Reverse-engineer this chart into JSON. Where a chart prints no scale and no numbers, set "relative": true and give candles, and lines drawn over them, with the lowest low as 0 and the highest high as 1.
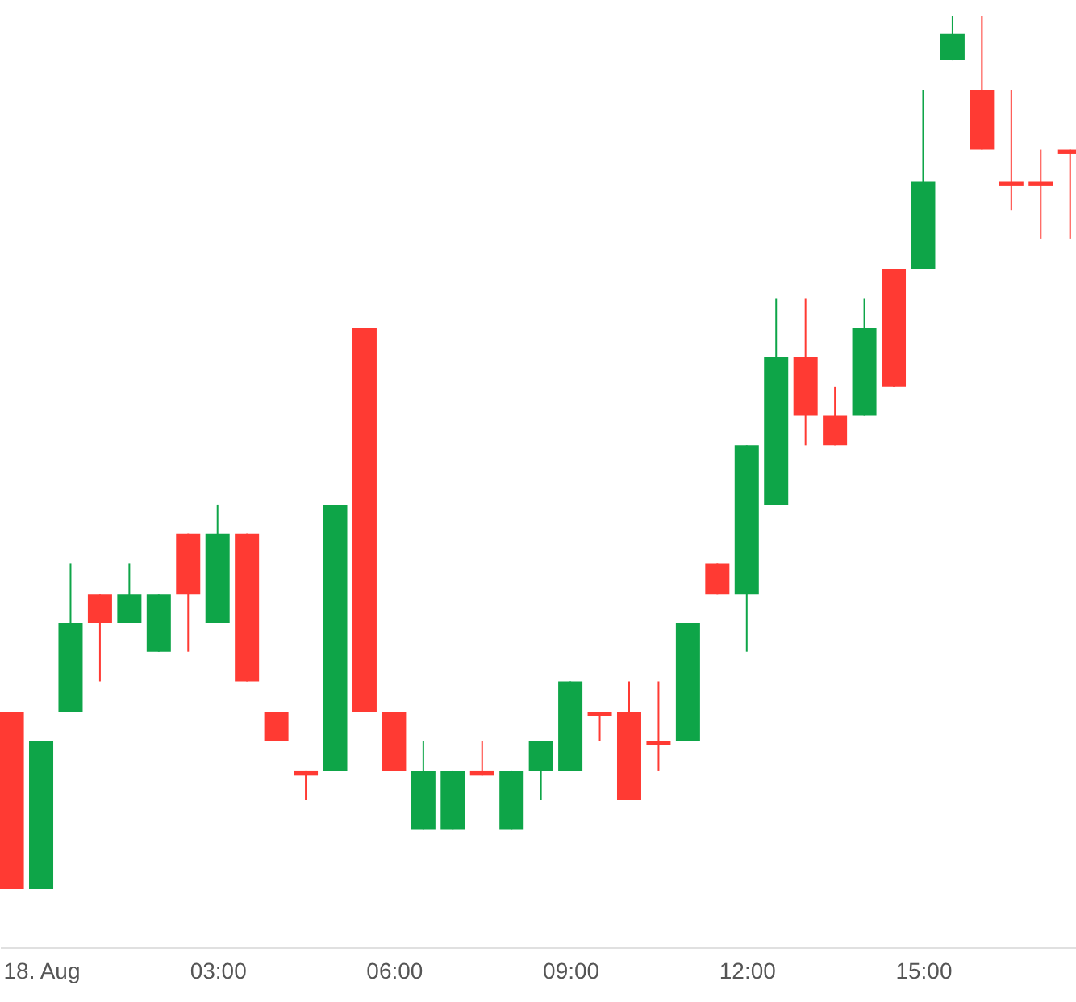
{
  "chart_data": {
    "type": "candlestick",
    "relative": true,
    "x": [
      -0.5,
      0,
      0.5,
      1,
      1.5,
      2,
      2.5,
      3,
      3.5,
      4,
      4.5,
      5,
      5.5,
      6,
      6.5,
      7,
      7.5,
      8,
      8.5,
      9,
      9.5,
      10,
      10.5,
      11,
      11.5,
      12,
      12.5,
      13,
      13.5,
      14,
      14.5,
      15,
      15.5,
      16,
      16.5,
      17,
      17.5
    ],
    "ohlc": [
      [
        0.203,
        0.203,
        0,
        0
      ],
      [
        0,
        0.17,
        0,
        0.17
      ],
      [
        0.203,
        0.373,
        0.203,
        0.305
      ],
      [
        0.338,
        0.338,
        0.238,
        0.305
      ],
      [
        0.305,
        0.373,
        0.305,
        0.338
      ],
      [
        0.272,
        0.338,
        0.272,
        0.338
      ],
      [
        0.407,
        0.407,
        0.272,
        0.338
      ],
      [
        0.305,
        0.44,
        0.305,
        0.407
      ],
      [
        0.407,
        0.407,
        0.238,
        0.238
      ],
      [
        0.203,
        0.203,
        0.17,
        0.17
      ],
      [
        0.135,
        0.135,
        0.102,
        0.13
      ],
      [
        0.135,
        0.44,
        0.135,
        0.44
      ],
      [
        0.643,
        0.643,
        0.203,
        0.203
      ],
      [
        0.203,
        0.203,
        0.135,
        0.135
      ],
      [
        0.068,
        0.17,
        0.068,
        0.135
      ],
      [
        0.068,
        0.135,
        0.068,
        0.135
      ],
      [
        0.135,
        0.17,
        0.13,
        0.13
      ],
      [
        0.068,
        0.135,
        0.068,
        0.135
      ],
      [
        0.135,
        0.17,
        0.102,
        0.17
      ],
      [
        0.135,
        0.238,
        0.135,
        0.238
      ],
      [
        0.203,
        0.203,
        0.17,
        0.198
      ],
      [
        0.203,
        0.238,
        0.102,
        0.102
      ],
      [
        0.17,
        0.238,
        0.135,
        0.165
      ],
      [
        0.17,
        0.305,
        0.17,
        0.305
      ],
      [
        0.373,
        0.373,
        0.338,
        0.338
      ],
      [
        0.338,
        0.508,
        0.272,
        0.508
      ],
      [
        0.44,
        0.677,
        0.44,
        0.61
      ],
      [
        0.61,
        0.677,
        0.508,
        0.542
      ],
      [
        0.542,
        0.575,
        0.508,
        0.508
      ],
      [
        0.542,
        0.677,
        0.542,
        0.643
      ],
      [
        0.71,
        0.71,
        0.575,
        0.575
      ],
      [
        0.71,
        0.915,
        0.71,
        0.811
      ],
      [
        0.95,
        1,
        0.95,
        0.98
      ],
      [
        0.915,
        1,
        0.847,
        0.847
      ],
      [
        0.811,
        0.915,
        0.778,
        0.806
      ],
      [
        0.811,
        0.847,
        0.745,
        0.806
      ],
      [
        0.847,
        0.847,
        0.745,
        0.842
      ]
    ],
    "colors": [
      "#ff3a33",
      "#0ea548",
      "#0ea548",
      "#ff3a33",
      "#0ea548",
      "#0ea548",
      "#ff3a33",
      "#0ea548",
      "#ff3a33",
      "#ff3a33",
      "#ff3a33",
      "#0ea548",
      "#ff3a33",
      "#ff3a33",
      "#0ea548",
      "#0ea548",
      "#ff3a33",
      "#0ea548",
      "#0ea548",
      "#0ea548",
      "#ff3a33",
      "#ff3a33",
      "#ff3a33",
      "#0ea548",
      "#ff3a33",
      "#0ea548",
      "#0ea548",
      "#ff3a33",
      "#ff3a33",
      "#0ea548",
      "#ff3a33",
      "#0ea548",
      "#0ea548",
      "#ff3a33",
      "#ff3a33",
      "#ff3a33",
      "#ff3a33"
    ],
    "xlim": [
      -0.7,
      17.6
    ],
    "xticks": [
      {
        "value": 0,
        "label": "18. Aug"
      },
      {
        "value": 3,
        "label": "03:00"
      },
      {
        "value": 6,
        "label": "06:00"
      },
      {
        "value": 9,
        "label": "09:00"
      },
      {
        "value": 12,
        "label": "12:00"
      },
      {
        "value": 15,
        "label": "15:00"
      }
    ]
  }
}
